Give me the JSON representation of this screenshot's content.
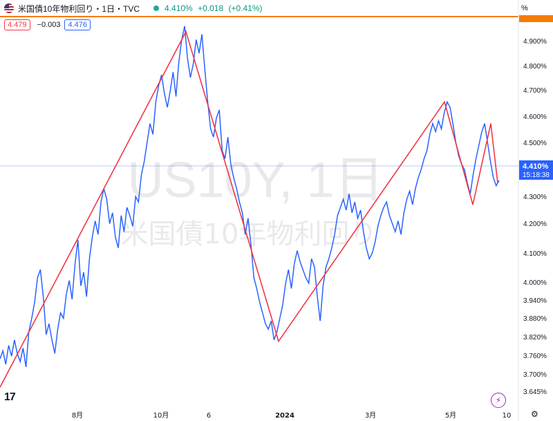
{
  "header": {
    "symbol": "米国債10年物利回り・1日・TVC",
    "last_pct": "4.410%",
    "change_abs": "+0.018",
    "change_pct": "(+0.41%)"
  },
  "values_row": {
    "left_value": "4.479",
    "mid_value": "−0.003",
    "right_value": "4.476"
  },
  "axis": {
    "unit": "%",
    "current_label": "4.410%",
    "countdown": "15:18:38"
  },
  "watermark": {
    "line1": "US10Y, 1日",
    "line2": "米国債10年物利回り"
  },
  "colors": {
    "series": "#2962ff",
    "zigzag": "#f23645",
    "top_line": "#f57c00",
    "current_bg": "#2962ff"
  },
  "icons": {
    "logo": "tradingview-logo-icon",
    "bolt": "lightning-icon",
    "gear": "gear-icon"
  },
  "chart_data": {
    "type": "line",
    "y_ticks": [
      "4.900%",
      "4.800%",
      "4.700%",
      "4.600%",
      "4.500%",
      "4.300%",
      "4.200%",
      "4.100%",
      "4.000%",
      "3.940%",
      "3.880%",
      "3.820%",
      "3.760%",
      "3.700%",
      "3.645%"
    ],
    "x_ticks": [
      "8月",
      "10月",
      "6",
      "2024",
      "3月",
      "5月",
      "10"
    ],
    "ylim": [
      3.62,
      5.0
    ],
    "series": [
      {
        "values": [
          3.75,
          3.78,
          3.73,
          3.8,
          3.76,
          3.82,
          3.77,
          3.74,
          3.79,
          3.72,
          3.85,
          3.9,
          3.96,
          4.05,
          4.08,
          3.98,
          3.84,
          3.88,
          3.82,
          3.77,
          3.86,
          3.92,
          3.9,
          3.99,
          4.04,
          3.97,
          4.1,
          4.19,
          4.02,
          4.07,
          3.98,
          4.12,
          4.2,
          4.26,
          4.21,
          4.33,
          4.38,
          4.34,
          4.25,
          4.29,
          4.2,
          4.16,
          4.28,
          4.22,
          4.31,
          4.28,
          4.24,
          4.35,
          4.33,
          4.43,
          4.48,
          4.55,
          4.62,
          4.58,
          4.7,
          4.76,
          4.8,
          4.73,
          4.68,
          4.74,
          4.81,
          4.72,
          4.85,
          4.93,
          4.98,
          4.86,
          4.79,
          4.84,
          4.93,
          4.88,
          4.95,
          4.82,
          4.7,
          4.6,
          4.57,
          4.64,
          4.67,
          4.52,
          4.49,
          4.57,
          4.47,
          4.42,
          4.38,
          4.33,
          4.29,
          4.21,
          4.27,
          4.17,
          4.05,
          4.01,
          3.96,
          3.92,
          3.88,
          3.86,
          3.89,
          3.82,
          3.85,
          3.9,
          3.95,
          4.03,
          4.08,
          4.01,
          4.1,
          4.15,
          4.11,
          4.08,
          4.05,
          4.03,
          4.12,
          4.09,
          3.98,
          3.89,
          4.02,
          4.09,
          4.12,
          4.16,
          4.21,
          4.28,
          4.31,
          4.34,
          4.3,
          4.36,
          4.29,
          4.33,
          4.27,
          4.3,
          4.22,
          4.16,
          4.12,
          4.14,
          4.18,
          4.24,
          4.28,
          4.31,
          4.33,
          4.28,
          4.25,
          4.22,
          4.26,
          4.21,
          4.29,
          4.34,
          4.37,
          4.32,
          4.38,
          4.42,
          4.45,
          4.49,
          4.52,
          4.58,
          4.62,
          4.59,
          4.63,
          4.6,
          4.66,
          4.7,
          4.68,
          4.62,
          4.55,
          4.5,
          4.47,
          4.45,
          4.4,
          4.36,
          4.43,
          4.49,
          4.54,
          4.59,
          4.62,
          4.55,
          4.48,
          4.42,
          4.39,
          4.41
        ],
        "dates_span": "2023-06 to 2024-06"
      }
    ],
    "zigzag_overlay": [
      3.645,
      4.96,
      3.815,
      4.7,
      4.32,
      4.62,
      4.4
    ],
    "current": 4.41,
    "grid": false
  }
}
